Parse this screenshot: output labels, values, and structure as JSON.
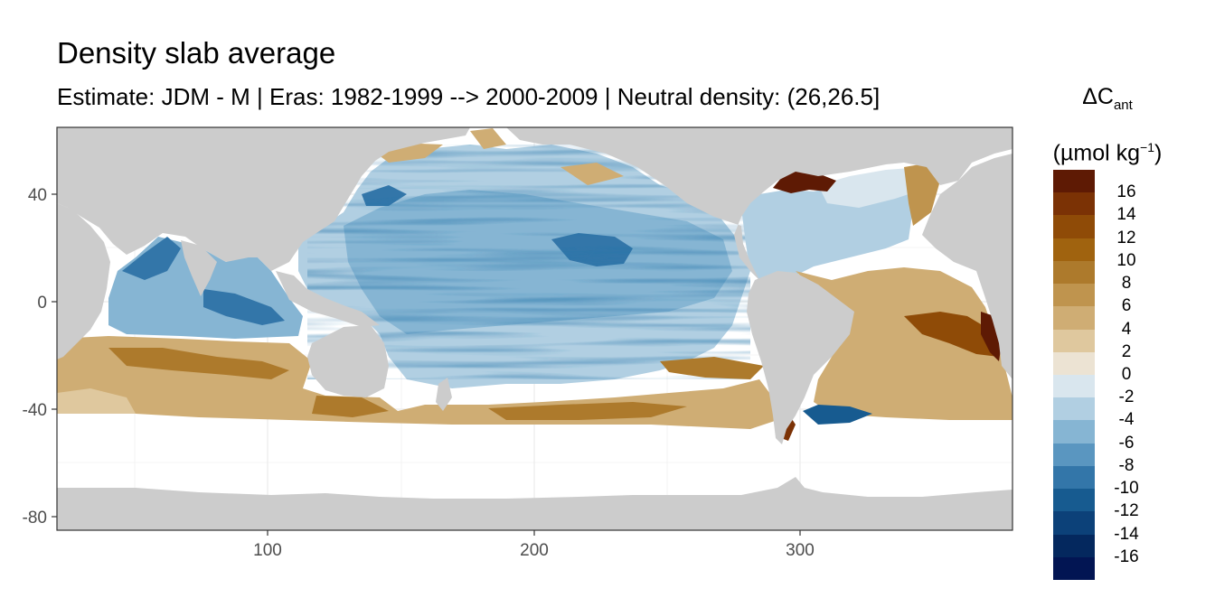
{
  "title": "Density slab average",
  "subtitle": "Estimate: JDM - M | Eras: 1982-1999 --> 2000-2009 | Neutral density: (26,26.5]",
  "legend": {
    "title_line1": "ΔC",
    "title_line1_sub": "ant",
    "title_line2_pre": "(µmol kg",
    "title_line2_sup": "−1",
    "title_line2_post": ")",
    "labels": [
      "16",
      "14",
      "12",
      "10",
      "8",
      "6",
      "4",
      "2",
      "0",
      "-2",
      "-4",
      "-6",
      "-8",
      "-10",
      "-12",
      "-14",
      "-16"
    ],
    "colors": [
      "#5e1a04",
      "#7b3205",
      "#8f4b07",
      "#a0630f",
      "#ad7a2c",
      "#bf944e",
      "#cfad74",
      "#dfc89e",
      "#ece3d3",
      "#d9e6ee",
      "#b1cfe2",
      "#86b5d3",
      "#5a96c0",
      "#3376a9",
      "#175b90",
      "#0c4179",
      "#04285e",
      "#021553"
    ]
  },
  "map": {
    "x_ticks": [
      "100",
      "200",
      "300"
    ],
    "y_ticks": [
      "40",
      "0",
      "-40",
      "-80"
    ],
    "land_color": "#cccccc",
    "ocean_missing_color": "#ffffff"
  }
}
